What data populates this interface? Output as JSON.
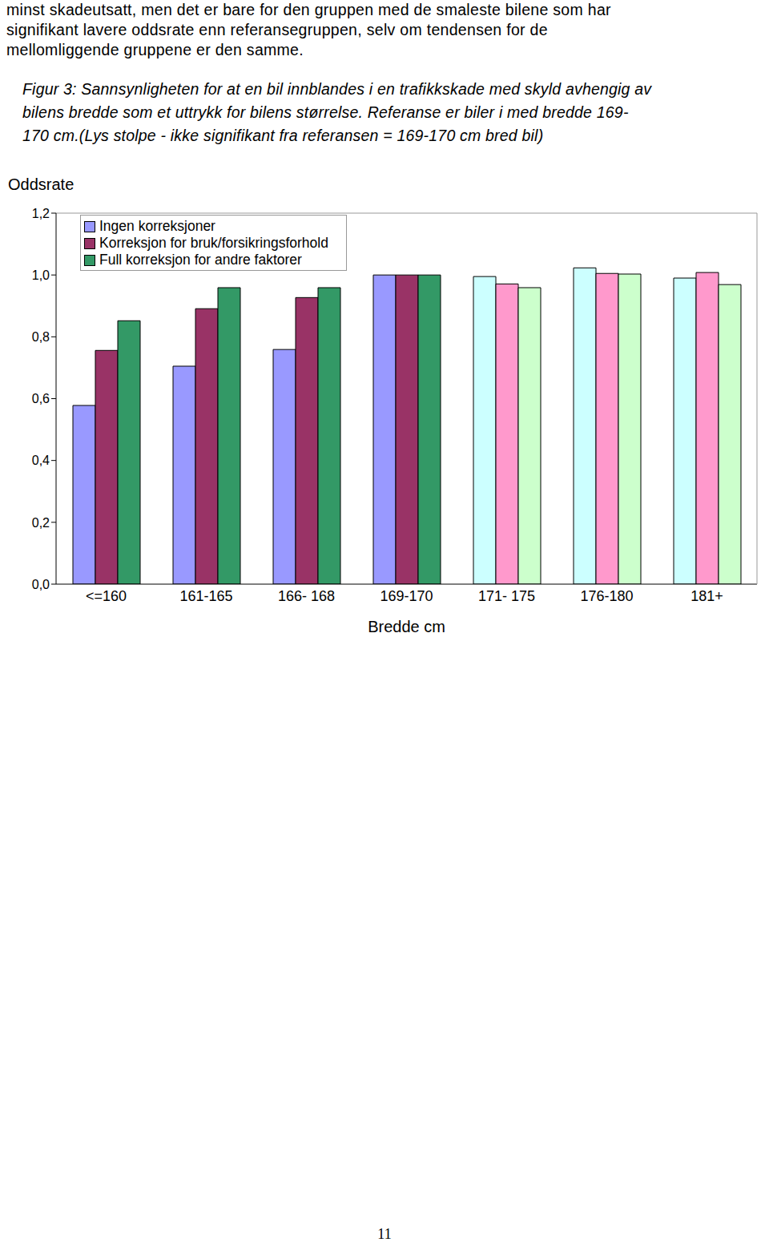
{
  "text": "minst skadeutsatt, men det er bare for den gruppen med de smaleste bilene som har\nsignifikant lavere oddsrate enn referansegruppen, selv om tendensen for de\nmellomliggende gruppene er den samme.",
  "chart_data": {
    "type": "bar",
    "title": "Figur 3: Sannsynligheten for at en bil innblandes i en trafikkskade med skyld avhengig av\nbilens bredde som et uttrykk for bilens størrelse. Referanse er biler i med bredde 169-\n170 cm.(Lys stolpe - ikke signifikant fra referansen = 169-170 cm bred bil)",
    "y_label": "Oddsrate",
    "x_label": "Bredde cm",
    "categories": [
      "<=160",
      "161-165",
      "166- 168",
      "169-170",
      "171- 175",
      "176-180",
      "181+"
    ],
    "series": [
      {
        "name": "Ingen korreksjoner",
        "color": "#9999ff",
        "colors": [
          "#9999ff",
          "#9999ff",
          "#9999ff",
          "#9999ff",
          "#ccffff",
          "#ccffff",
          "#ccffff"
        ],
        "values": [
          0.578,
          0.705,
          0.759,
          1.0,
          0.995,
          1.023,
          0.99
        ]
      },
      {
        "name": "Korreksjon for bruk/forsikringsforhold",
        "color": "#993366",
        "colors": [
          "#993366",
          "#993366",
          "#993366",
          "#993366",
          "#ff99cc",
          "#ff99cc",
          "#ff99cc"
        ],
        "values": [
          0.756,
          0.891,
          0.927,
          1.0,
          0.971,
          1.005,
          1.008
        ]
      },
      {
        "name": "Full korreksjon for andre faktorer",
        "color": "#339966",
        "colors": [
          "#339966",
          "#339966",
          "#339966",
          "#339966",
          "#ccffcc",
          "#ccffcc",
          "#ccffcc"
        ],
        "values": [
          0.852,
          0.959,
          0.959,
          1.0,
          0.959,
          1.003,
          0.969
        ]
      }
    ],
    "ylim": [
      0,
      1.2
    ],
    "yticks": [
      {
        "value": 0,
        "label": "0,0"
      },
      {
        "value": 0.2,
        "label": "0,2"
      },
      {
        "value": 0.4,
        "label": "0,4"
      },
      {
        "value": 0.6,
        "label": "0,6"
      },
      {
        "value": 0.8,
        "label": "0,8"
      },
      {
        "value": 1.0,
        "label": "1,0"
      },
      {
        "value": 1.2,
        "label": "1,2"
      }
    ],
    "grid": false,
    "legend": "upper left"
  },
  "page_number": "11"
}
